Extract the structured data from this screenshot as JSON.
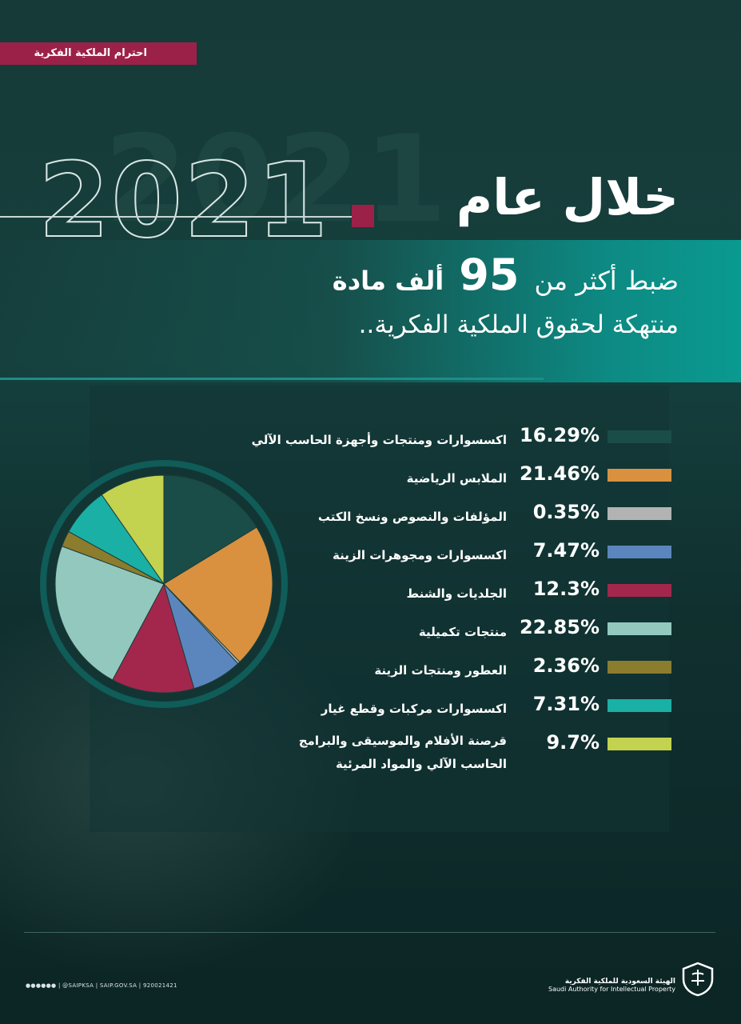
{
  "header": {
    "tag": "احترام الملكية الفكرية",
    "year": "2021",
    "headline": "خلال عام",
    "subtitle_pre": "ضبط أكثر من",
    "subtitle_number": "95",
    "subtitle_post": "ألف مادة",
    "subtitle_line2": "منتهكة لحقوق الملكية الفكرية.."
  },
  "colors": {
    "brand": "#9c2148",
    "accent": "#0a9a90"
  },
  "chart_data": {
    "type": "pie",
    "categories": [
      "اكسسوارات ومنتجات وأجهزة الحاسب الآلي",
      "الملابس الرياضية",
      "المؤلفات والنصوص ونسخ الكتب",
      "اكسسوارات ومجوهرات الزينة",
      "الجلديات والشنط",
      "منتجات تكميلية",
      "العطور ومنتجات الزينة",
      "اكسسوارات مركبات وقطع غيار",
      "قرصنة الأفلام والموسيقى والبرامج\nالحاسب الآلي والمواد المرئية"
    ],
    "values": [
      16.29,
      21.46,
      0.35,
      7.47,
      12.3,
      22.85,
      2.36,
      7.31,
      9.7
    ],
    "labels": [
      "16.29%",
      "21.46%",
      "0.35%",
      "7.47%",
      "12.3%",
      "22.85%",
      "2.36%",
      "7.31%",
      "9.7%"
    ],
    "colors": [
      "#1b4d48",
      "#d9913f",
      "#b3b3b3",
      "#5b86bd",
      "#a3274c",
      "#93c8bf",
      "#8c7c2e",
      "#1ab0a5",
      "#c3d24f"
    ],
    "start": "12 o'clock",
    "direction": "clockwise",
    "legend": "right"
  },
  "footer": {
    "contacts": "| @SAIPKSA | SAIP.GOV.SA | 920021421",
    "org_ar": "الهيئة السعودية للملكية الفكرية",
    "org_en": "Saudi Authority for Intellectual Property"
  }
}
